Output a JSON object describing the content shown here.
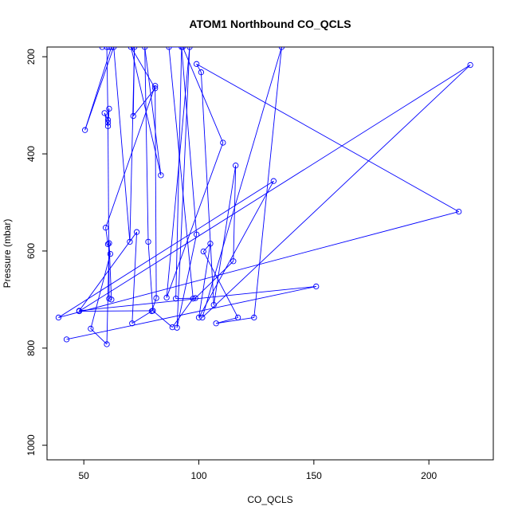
{
  "chart_data": {
    "type": "line",
    "title": "ATOM1 Northbound CO_QCLS",
    "xlabel": "CO_QCLS",
    "ylabel": "Pressure (mbar)",
    "xlim": [
      34,
      228
    ],
    "ylim": [
      1030,
      180
    ],
    "y_reversed": true,
    "x_ticks": [
      50,
      100,
      150,
      200
    ],
    "y_ticks": [
      200,
      400,
      600,
      800,
      1000
    ],
    "grid": false,
    "series": [
      {
        "color": "#0000ff",
        "marker": "open-circle",
        "points": [
          [
            42.5,
            782
          ],
          [
            151,
            673
          ],
          [
            48,
            723
          ],
          [
            73,
            561
          ],
          [
            71,
            749
          ],
          [
            79.5,
            724
          ],
          [
            81.5,
            697
          ],
          [
            81,
            260
          ],
          [
            59.5,
            552
          ],
          [
            60.5,
            586
          ],
          [
            61.5,
            606
          ],
          [
            53,
            760
          ],
          [
            60,
            792
          ],
          [
            61,
            584
          ],
          [
            62,
            700
          ],
          [
            61,
            698
          ],
          [
            60.5,
            336
          ],
          [
            61,
            307
          ],
          [
            60.5,
            343
          ],
          [
            59,
            316
          ],
          [
            60.5,
            330
          ],
          [
            60,
            180
          ],
          [
            61,
            180
          ],
          [
            58,
            180
          ],
          [
            62,
            180
          ],
          [
            50.5,
            351
          ],
          [
            63,
            180
          ],
          [
            70,
            581
          ],
          [
            72,
            180
          ],
          [
            71.5,
            322
          ],
          [
            81,
            265
          ],
          [
            70.5,
            180
          ],
          [
            83.5,
            444
          ],
          [
            76.5,
            180
          ],
          [
            78,
            581
          ],
          [
            80,
            723
          ],
          [
            88.5,
            757
          ],
          [
            97.5,
            698
          ],
          [
            87,
            180
          ],
          [
            93,
            180
          ],
          [
            110.5,
            377
          ],
          [
            86,
            696
          ],
          [
            96,
            180
          ],
          [
            90.5,
            758
          ],
          [
            99,
            566
          ],
          [
            92.5,
            180
          ],
          [
            90,
            698
          ],
          [
            98.5,
            697
          ],
          [
            115,
            621
          ],
          [
            116,
            424
          ],
          [
            106.5,
            711
          ],
          [
            101,
            232
          ],
          [
            99,
            215
          ],
          [
            213,
            519
          ],
          [
            39,
            737
          ],
          [
            132.5,
            456
          ],
          [
            100,
            737
          ],
          [
            105,
            585
          ],
          [
            102,
            601
          ],
          [
            117,
            737
          ],
          [
            107.5,
            749
          ],
          [
            124,
            737
          ],
          [
            136,
            180
          ],
          [
            101.5,
            737
          ],
          [
            218,
            217
          ],
          [
            48,
            724
          ],
          [
            80,
            723
          ]
        ]
      }
    ]
  }
}
